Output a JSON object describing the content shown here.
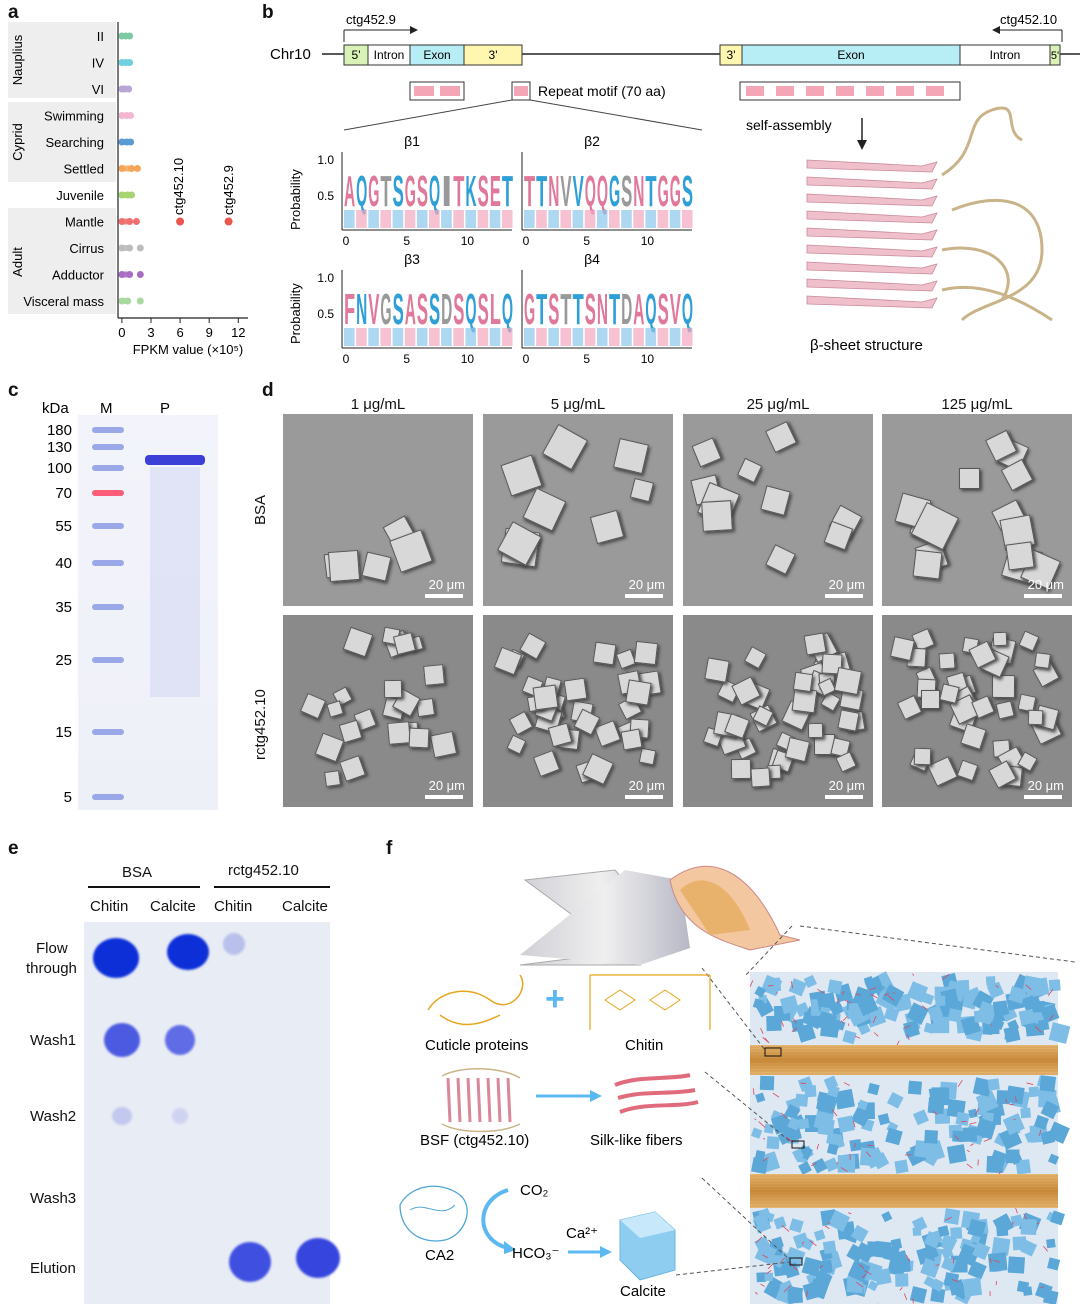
{
  "panels": {
    "a": {
      "label": "a",
      "groups": [
        "Nauplius",
        "Cyprid",
        "Adult"
      ],
      "ctg10_label": "ctg452.10",
      "ctg9_label": "ctg452.9",
      "chart_data": {
        "type": "scatter",
        "categories": [
          "II",
          "IV",
          "VI",
          "Swimming",
          "Searching",
          "Settled",
          "Juvenile",
          "Mantle",
          "Cirrus",
          "Adductor",
          "Visceral mass"
        ],
        "xlabel": "FPKM value (×10⁵)",
        "xticks": [
          "0",
          "3",
          "6",
          "9",
          "12"
        ],
        "xlim": [
          -0.4,
          13
        ],
        "series": [
          {
            "name": "ctg452.10",
            "values": [
              null,
              null,
              null,
              null,
              null,
              null,
              null,
              6,
              null,
              null,
              null
            ]
          },
          {
            "name": "ctg452.9",
            "values": [
              null,
              null,
              null,
              null,
              null,
              null,
              null,
              11,
              null,
              null,
              null
            ]
          }
        ],
        "background_points": [
          [
            0.4,
            0.8
          ],
          [
            0.4,
            0.8
          ],
          [
            0.3,
            0.7
          ],
          [
            0.5,
            0.9
          ],
          [
            0.5,
            0.9
          ],
          [
            1.0,
            1.6
          ],
          [
            0.6,
            1.0
          ],
          [
            0.8,
            1.5
          ],
          [
            0.8,
            1.9
          ],
          [
            0.8,
            1.9
          ],
          [
            0.6,
            1.9
          ]
        ],
        "point_colors": [
          "#7dc9a4",
          "#6fd0e0",
          "#b7a6d6",
          "#f2b8d2",
          "#5b9bd5",
          "#f5a55a",
          "#a6d470",
          "#f07070",
          "#bdbdbd",
          "#a86cc1",
          "#a8d8a0"
        ]
      }
    },
    "b": {
      "label": "b",
      "chr": "Chr10",
      "gene_left": "ctg452.9",
      "gene_right": "ctg452.10",
      "seg_5": "5'",
      "seg_intron": "Intron",
      "seg_exon": "Exon",
      "seg_3": "3'",
      "seg_5r": "5'",
      "repeat": "Repeat motif (70 aa)",
      "selfassembly": "self-assembly",
      "bsheet": "β-sheet structure",
      "prob": "Probability",
      "y1": "1.0",
      "y05": "0.5",
      "beta": [
        "β1",
        "β2",
        "β3",
        "β4"
      ],
      "logo_seqs": [
        "AQGTSGSQITKSET",
        "TTNVVQQGSNTGGS",
        "FNVGSASSDSQSLQ",
        "GTSTTSNTDAQSVQ"
      ],
      "xt": [
        "0",
        "5",
        "10"
      ]
    },
    "c": {
      "label": "c",
      "kda": "kDa",
      "lane_m": "M",
      "lane_p": "P",
      "markers": [
        "180",
        "130",
        "100",
        "70",
        "55",
        "40",
        "35",
        "25",
        "15",
        "5"
      ]
    },
    "d": {
      "label": "d",
      "concs": [
        "1 μg/mL",
        "5 μg/mL",
        "25 μg/mL",
        "125 μg/mL"
      ],
      "rows": [
        "BSA",
        "rctg452.10"
      ],
      "scale": "20 μm"
    },
    "e": {
      "label": "e",
      "groups": [
        "BSA",
        "rctg452.10"
      ],
      "cols": [
        "Chitin",
        "Calcite",
        "Chitin",
        "Calcite"
      ],
      "rows": [
        "Flow through",
        "Wash1",
        "Wash2",
        "Wash3",
        "Elution"
      ],
      "flow1": "Flow",
      "flow2": "through"
    },
    "f": {
      "label": "f",
      "cuticle": "Cuticle proteins",
      "chitin": "Chitin",
      "bsf": "BSF (ctg452.10)",
      "silk": "Silk-like fibers",
      "ca2": "CA2",
      "co2": "CO₂",
      "hco3": "HCO₃⁻",
      "ca": "Ca²⁺",
      "calcite": "Calcite"
    }
  }
}
